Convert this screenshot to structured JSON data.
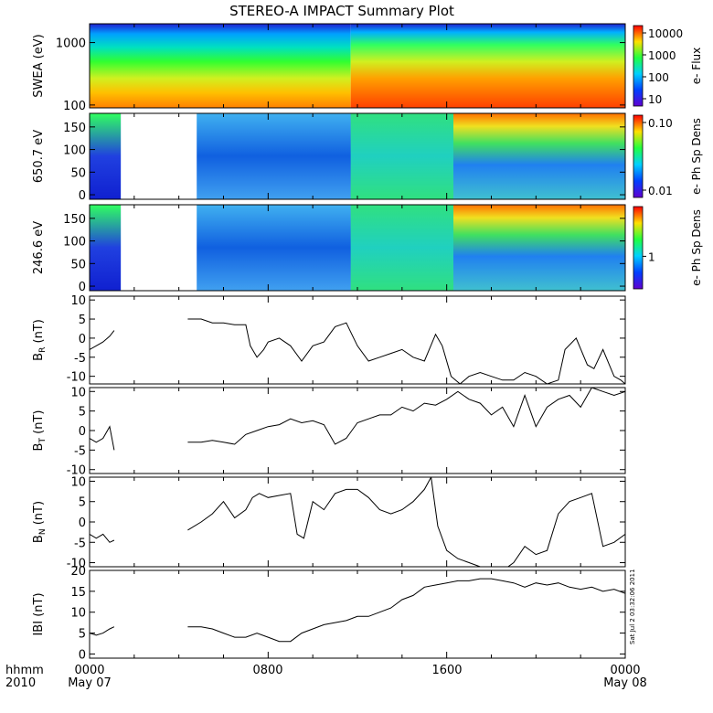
{
  "title": "STEREO-A IMPACT Summary Plot",
  "footer": {
    "hhmm_label": "hhmm",
    "year_label": "2010",
    "tick_times": [
      "0000",
      "0800",
      "1600",
      "0000"
    ],
    "tick_dates": [
      "May 07",
      "",
      "",
      "May 08"
    ],
    "timestamp": "Sat Jul  2 03:32:06 2011"
  },
  "colors": {
    "trace": "#000000",
    "frame": "#000000",
    "background": "#ffffff"
  },
  "chart_data": [
    {
      "type": "heatmap",
      "ylabel": "SWEA (eV)",
      "y_scale": "log",
      "ylim": [
        90,
        2000
      ],
      "yticks": [
        "1000",
        "100"
      ],
      "yticks_values": [
        1000,
        100
      ],
      "colorbar": {
        "label": "e- Flux",
        "scale": "log",
        "ticks": [
          "10000",
          "1000",
          "100",
          "10"
        ],
        "ticks_values": [
          10000,
          1000,
          100,
          10
        ]
      },
      "data_gaps_hours": []
    },
    {
      "type": "heatmap",
      "ylabel": "650.7 eV",
      "ylim": [
        -10,
        180
      ],
      "yticks": [
        "150",
        "100",
        "50",
        "0"
      ],
      "yticks_values": [
        150,
        100,
        50,
        0
      ],
      "colorbar": {
        "label": "e- Ph Sp Dens",
        "scale": "log",
        "ticks": [
          "0.10",
          "0.01"
        ],
        "ticks_values": [
          0.1,
          0.01
        ]
      },
      "data_gaps_hours": [
        [
          1.4,
          4.8
        ]
      ]
    },
    {
      "type": "heatmap",
      "ylabel": "246.6 eV",
      "ylim": [
        -10,
        180
      ],
      "yticks": [
        "150",
        "100",
        "50",
        "0"
      ],
      "yticks_values": [
        150,
        100,
        50,
        0
      ],
      "colorbar": {
        "label": "e- Ph Sp Dens",
        "scale": "log",
        "ticks": [
          "1"
        ],
        "ticks_values": [
          1
        ]
      },
      "data_gaps_hours": [
        [
          1.4,
          4.8
        ]
      ]
    },
    {
      "type": "line",
      "ylabel_main": "B",
      "ylabel_sub": "R",
      "ylabel_unit": " (nT)",
      "ylim": [
        -12,
        11
      ],
      "yticks": [
        "10",
        "5",
        "0",
        "-5",
        "-10"
      ],
      "yticks_values": [
        10,
        5,
        0,
        -5,
        -10
      ],
      "x_hours": [
        0,
        0.3,
        0.6,
        0.9,
        1.1,
        4.4,
        5.0,
        5.5,
        6.0,
        6.5,
        7.0,
        7.2,
        7.5,
        7.8,
        8.0,
        8.5,
        9.0,
        9.5,
        10.0,
        10.5,
        11.0,
        11.5,
        12.0,
        12.5,
        13.0,
        13.5,
        14.0,
        14.5,
        15.0,
        15.5,
        15.8,
        16.2,
        16.6,
        17.0,
        17.5,
        18.0,
        18.5,
        19.0,
        19.5,
        20.0,
        20.5,
        21.0,
        21.3,
        21.8,
        22.3,
        22.6,
        23.0,
        23.5,
        23.8,
        24.0
      ],
      "values": [
        -3,
        -2,
        -1,
        0.5,
        2,
        5,
        5,
        4,
        4,
        3.5,
        3.5,
        -2,
        -5,
        -3,
        -1,
        0,
        -2,
        -6,
        -2,
        -1,
        3,
        4,
        -2,
        -6,
        -5,
        -4,
        -3,
        -5,
        -6,
        1,
        -2,
        -10,
        -12,
        -10,
        -9,
        -10,
        -11,
        -11,
        -9,
        -10,
        -12,
        -11,
        -3,
        0,
        -7,
        -8,
        -3,
        -10,
        -11,
        -12
      ],
      "gap_after_hour": 1.1
    },
    {
      "type": "line",
      "ylabel_main": "B",
      "ylabel_sub": "T",
      "ylabel_unit": " (nT)",
      "ylim": [
        -11,
        11
      ],
      "yticks": [
        "10",
        "5",
        "0",
        "-5",
        "-10"
      ],
      "yticks_values": [
        10,
        5,
        0,
        -5,
        -10
      ],
      "x_hours": [
        0,
        0.3,
        0.6,
        0.9,
        1.1,
        4.4,
        5.0,
        5.5,
        6.0,
        6.5,
        7.0,
        7.5,
        8.0,
        8.5,
        9.0,
        9.5,
        10.0,
        10.5,
        11.0,
        11.5,
        12.0,
        12.5,
        13.0,
        13.5,
        14.0,
        14.5,
        15.0,
        15.5,
        16.0,
        16.5,
        17.0,
        17.5,
        18.0,
        18.5,
        19.0,
        19.5,
        20.0,
        20.5,
        21.0,
        21.5,
        22.0,
        22.5,
        23.0,
        23.5,
        24.0
      ],
      "values": [
        -2,
        -3,
        -2,
        1,
        -5,
        -3,
        -3,
        -2.5,
        -3,
        -3.5,
        -1,
        0,
        1,
        1.5,
        3,
        2,
        2.5,
        1.5,
        -3.5,
        -2,
        2,
        3,
        4,
        4,
        6,
        5,
        7,
        6.5,
        8,
        10,
        8,
        7,
        4,
        6,
        1,
        9,
        1,
        6,
        8,
        9,
        6,
        11,
        10,
        9,
        10
      ],
      "gap_after_hour": 1.1
    },
    {
      "type": "line",
      "ylabel_main": "B",
      "ylabel_sub": "N",
      "ylabel_unit": " (nT)",
      "ylim": [
        -11,
        11
      ],
      "yticks": [
        "10",
        "5",
        "0",
        "-5",
        "-10"
      ],
      "yticks_values": [
        10,
        5,
        0,
        -5,
        -10
      ],
      "x_hours": [
        0,
        0.3,
        0.6,
        0.9,
        1.1,
        4.4,
        5.0,
        5.5,
        6.0,
        6.5,
        7.0,
        7.3,
        7.6,
        8.0,
        8.5,
        9.0,
        9.3,
        9.6,
        10.0,
        10.5,
        11.0,
        11.5,
        12.0,
        12.5,
        13.0,
        13.5,
        14.0,
        14.5,
        15.0,
        15.3,
        15.6,
        16.0,
        16.5,
        17.0,
        17.5,
        18.0,
        18.5,
        19.0,
        19.5,
        20.0,
        20.5,
        21.0,
        21.5,
        22.0,
        22.5,
        23.0,
        23.5,
        24.0
      ],
      "values": [
        -3,
        -4,
        -3,
        -5,
        -4.5,
        -2,
        0,
        2,
        5,
        1,
        3,
        6,
        7,
        6,
        6.5,
        7,
        -3,
        -4,
        5,
        3,
        7,
        8,
        8,
        6,
        3,
        2,
        3,
        5,
        8,
        11,
        -1,
        -7,
        -9,
        -10,
        -11,
        -12,
        -12,
        -10,
        -6,
        -8,
        -7,
        2,
        5,
        6,
        7,
        -6,
        -5,
        -3
      ],
      "gap_after_hour": 1.1
    },
    {
      "type": "line",
      "ylabel_main": "IBI",
      "ylabel_sub": "",
      "ylabel_unit": " (nT)",
      "ylim": [
        -1,
        20
      ],
      "yticks": [
        "20",
        "15",
        "10",
        "5",
        "0"
      ],
      "yticks_values": [
        20,
        15,
        10,
        5,
        0
      ],
      "x_hours": [
        0,
        0.3,
        0.6,
        0.9,
        1.1,
        4.4,
        5.0,
        5.5,
        6.0,
        6.5,
        7.0,
        7.5,
        8.0,
        8.5,
        9.0,
        9.5,
        10.0,
        10.5,
        11.0,
        11.5,
        12.0,
        12.5,
        13.0,
        13.5,
        14.0,
        14.5,
        15.0,
        15.5,
        16.0,
        16.5,
        17.0,
        17.5,
        18.0,
        18.5,
        19.0,
        19.5,
        20.0,
        20.5,
        21.0,
        21.5,
        22.0,
        22.5,
        23.0,
        23.5,
        24.0
      ],
      "values": [
        5,
        4.5,
        5,
        6,
        6.5,
        6.5,
        6.5,
        6,
        5,
        4,
        4,
        5,
        4,
        3,
        3,
        5,
        6,
        7,
        7.5,
        8,
        9,
        9,
        10,
        11,
        13,
        14,
        16,
        16.5,
        17,
        17.5,
        17.5,
        18,
        18,
        17.5,
        17,
        16,
        17,
        16.5,
        17,
        16,
        15.5,
        16,
        15,
        15.5,
        14.5
      ],
      "gap_after_hour": 1.1
    }
  ]
}
